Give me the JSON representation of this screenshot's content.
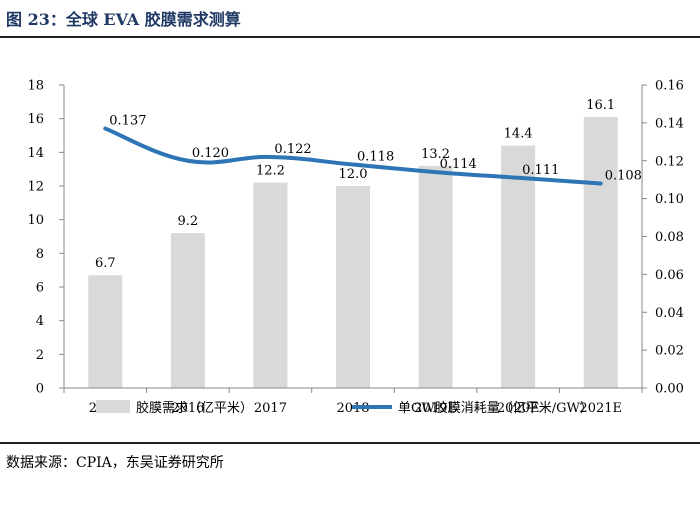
{
  "figure": {
    "title": "图 23：全球 EVA 胶膜需求测算",
    "source": "数据来源：CPIA，东吴证券研究所"
  },
  "chart_data": {
    "type": "bar",
    "categories": [
      "2015",
      "2016",
      "2017",
      "2018",
      "2019E",
      "2020E",
      "2021E"
    ],
    "series": [
      {
        "name": "胶膜需求（亿平米）",
        "type": "bar",
        "axis": "left",
        "values": [
          6.7,
          9.2,
          12.2,
          12.0,
          13.2,
          14.4,
          16.1
        ],
        "labels": [
          "6.7",
          "9.2",
          "12.2",
          "12.0",
          "13.2",
          "14.4",
          "16.1"
        ],
        "color": "#d9d9d9"
      },
      {
        "name": "单GW胶膜消耗量（亿平米/GW）",
        "type": "line",
        "axis": "right",
        "values": [
          0.137,
          0.12,
          0.122,
          0.118,
          0.114,
          0.111,
          0.108
        ],
        "labels": [
          "0.137",
          "0.120",
          "0.122",
          "0.118",
          "0.114",
          "0.111",
          "0.108"
        ],
        "color": "#2e75b6"
      }
    ],
    "y_left": {
      "min": 0,
      "max": 18,
      "step": 2,
      "ticks": [
        "0",
        "2",
        "4",
        "6",
        "8",
        "10",
        "12",
        "14",
        "16",
        "18"
      ]
    },
    "y_right": {
      "min": 0,
      "max": 0.16,
      "step": 0.02,
      "ticks": [
        "0.00",
        "0.02",
        "0.04",
        "0.06",
        "0.08",
        "0.10",
        "0.12",
        "0.14",
        "0.16"
      ]
    },
    "grid": false,
    "legend_position": "bottom"
  }
}
